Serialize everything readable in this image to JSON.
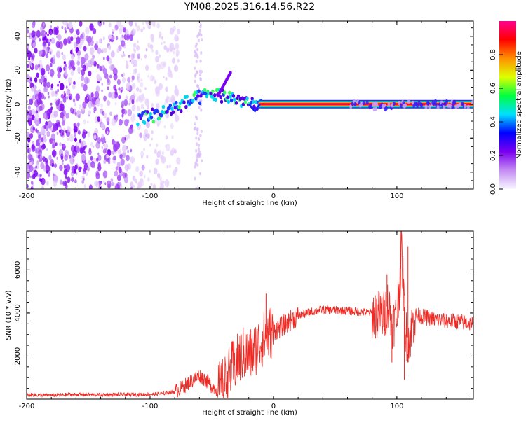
{
  "chart_data": [
    {
      "type": "heatmap",
      "title": "YM08.2025.316.14.56.R22",
      "xlabel": "Height of straight line (km)",
      "ylabel": "Frequency (Hz)",
      "xlim": [
        -200,
        162
      ],
      "ylim": [
        -50,
        49
      ],
      "xticks": [
        "-200",
        "-100",
        "0",
        "100"
      ],
      "yticks": [
        "-40",
        "-20",
        "0",
        "20",
        "40"
      ],
      "colorbar": {
        "label": "Normalized spectral amplitude",
        "ticks": [
          "0.0",
          "0.2",
          "0.4",
          "0.6",
          "0.8"
        ],
        "range": [
          0,
          1
        ],
        "colors": [
          "#f7f7ff",
          "#c58cf3",
          "#7a00f0",
          "#0000ff",
          "#00e0ff",
          "#00ff40",
          "#dfff00",
          "#ff9000",
          "#ff0000",
          "#ff0090"
        ]
      },
      "ridge": {
        "description_free": true,
        "x": [
          -110,
          -100,
          -90,
          -80,
          -70,
          -60,
          -50,
          -40,
          -30,
          -20,
          -15,
          -10,
          0,
          60,
          70,
          80,
          90,
          100,
          110,
          120,
          162
        ],
        "y": [
          -8,
          -7,
          -5,
          -2,
          1,
          4,
          6,
          5,
          3,
          1,
          -2,
          0,
          0,
          0,
          0,
          -1,
          -2,
          -1,
          0,
          0,
          0
        ]
      },
      "noise_extent_km": [
        -200,
        -85
      ]
    },
    {
      "type": "line",
      "title": "",
      "xlabel": "Height of straight line (km)",
      "ylabel": "SNR (10 * v/v)",
      "xlim": [
        -200,
        162
      ],
      "ylim": [
        0,
        7800
      ],
      "xticks": [
        "-200",
        "-100",
        "0",
        "100"
      ],
      "yticks": [
        "2000",
        "4000",
        "6000"
      ],
      "color": "#ee2a24",
      "series": [
        {
          "name": "SNR",
          "x": [
            -200,
            -180,
            -160,
            -140,
            -120,
            -100,
            -90,
            -80,
            -75,
            -70,
            -65,
            -60,
            -55,
            -50,
            -45,
            -40,
            -35,
            -30,
            -25,
            -20,
            -15,
            -10,
            -5,
            0,
            5,
            10,
            15,
            20,
            25,
            30,
            35,
            40,
            50,
            60,
            70,
            80,
            85,
            90,
            93,
            96,
            100,
            104,
            107,
            110,
            115,
            120,
            130,
            140,
            150,
            162
          ],
          "y": [
            200,
            180,
            220,
            200,
            210,
            220,
            260,
            350,
            500,
            700,
            900,
            1100,
            900,
            600,
            400,
            700,
            1300,
            1700,
            2100,
            2000,
            2300,
            2700,
            3000,
            3200,
            3300,
            3500,
            3700,
            3850,
            3950,
            4050,
            4100,
            4150,
            4130,
            4100,
            4050,
            4000,
            3900,
            3900,
            4500,
            3500,
            3800,
            6800,
            3000,
            2800,
            3900,
            3850,
            3700,
            3650,
            3600,
            3500
          ]
        }
      ],
      "spikes": [
        {
          "x": -6,
          "y": 4900
        },
        {
          "x": 92,
          "y": 5800
        },
        {
          "x": 96,
          "y": 1700
        },
        {
          "x": 103,
          "y": 7800
        },
        {
          "x": 106,
          "y": 900
        },
        {
          "x": 109,
          "y": 7100
        }
      ]
    }
  ]
}
